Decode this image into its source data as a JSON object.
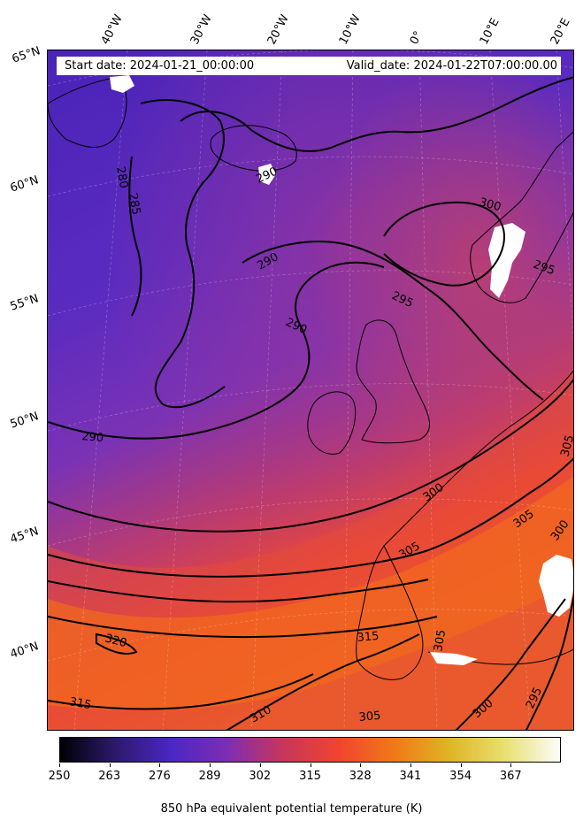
{
  "header": {
    "start_date": "Start date: 2024-01-21_00:00:00",
    "valid_date": "Valid_date: 2024-01-22T07:00:00.00"
  },
  "longitude_labels": [
    "40°W",
    "30°W",
    "20°W",
    "10°W",
    "0°",
    "10°E",
    "20°E"
  ],
  "latitude_labels": [
    "65°N",
    "60°N",
    "55°N",
    "50°N",
    "45°N",
    "40°N"
  ],
  "contour_labels": [
    "280",
    "285",
    "290",
    "290",
    "290",
    "290",
    "295",
    "295",
    "295",
    "300",
    "300",
    "300",
    "300",
    "305",
    "305",
    "305",
    "305",
    "305",
    "310",
    "315",
    "315",
    "320"
  ],
  "colorbar": {
    "ticks": [
      "250",
      "263",
      "276",
      "289",
      "302",
      "315",
      "328",
      "341",
      "354",
      "367"
    ],
    "label": "850 hPa equivalent potential temperature (K)",
    "colormap": [
      "#000004",
      "#2c1a6b",
      "#4a27c4",
      "#7d2db4",
      "#c6365c",
      "#f14330",
      "#f0781a",
      "#e0b425",
      "#e8e070",
      "#fcfcfa"
    ]
  }
}
